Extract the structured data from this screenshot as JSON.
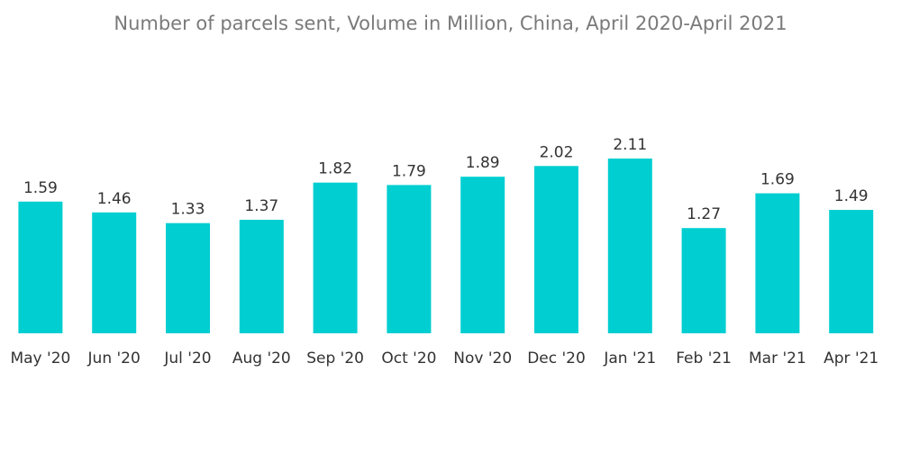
{
  "chart_data": {
    "type": "bar",
    "title": "Number of parcels sent, Volume in Million, China, April 2020-April 2021",
    "xlabel": "",
    "ylabel": "",
    "categories": [
      "May '20",
      "Jun '20",
      "Jul '20",
      "Aug '20",
      "Sep '20",
      "Oct '20",
      "Nov '20",
      "Dec '20",
      "Jan '21",
      "Feb '21",
      "Mar '21",
      "Apr '21"
    ],
    "values": [
      1.59,
      1.46,
      1.33,
      1.37,
      1.82,
      1.79,
      1.89,
      2.02,
      2.11,
      1.27,
      1.69,
      1.49
    ],
    "value_labels": [
      "1.59",
      "1.46",
      "1.33",
      "1.37",
      "1.82",
      "1.79",
      "1.89",
      "2.02",
      "2.11",
      "1.27",
      "1.69",
      "1.49"
    ],
    "ylim": [
      0,
      2.11
    ],
    "grid": false,
    "legend": "none",
    "bar_color": "#00ced1"
  }
}
